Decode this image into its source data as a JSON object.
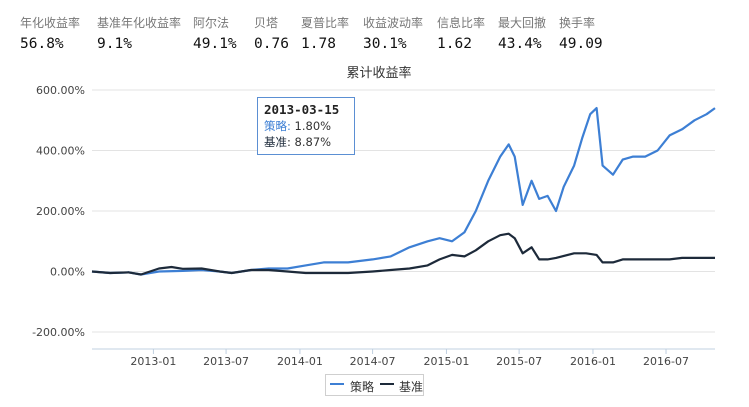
{
  "metrics": [
    {
      "label": "年化收益率",
      "value": "56.8%"
    },
    {
      "label": "基准年化收益率",
      "value": "9.1%"
    },
    {
      "label": "阿尔法",
      "value": "49.1%"
    },
    {
      "label": "贝塔",
      "value": "0.76"
    },
    {
      "label": "夏普比率",
      "value": "1.78"
    },
    {
      "label": "收益波动率",
      "value": "30.1%"
    },
    {
      "label": "信息比率",
      "value": "1.62"
    },
    {
      "label": "最大回撤",
      "value": "43.4%"
    },
    {
      "label": "换手率",
      "value": "49.09"
    }
  ],
  "tooltip": {
    "date": "2013-03-15",
    "strategy_label": "策略",
    "strategy_value": "1.80%",
    "benchmark_label": "基准",
    "benchmark_value": "8.87%"
  },
  "chart_data": {
    "type": "line",
    "title": "累计收益率",
    "x_ticks": [
      "2013-01",
      "2013-07",
      "2014-01",
      "2014-07",
      "2015-01",
      "2015-07",
      "2016-01",
      "2016-07"
    ],
    "y_ticks": [
      "600.00%",
      "400.00%",
      "200.00%",
      "0.00%",
      "-200.00%"
    ],
    "ylim": [
      -200,
      600
    ],
    "grid": true,
    "legend_placement": "bottom-center",
    "x_range": [
      "2012-08-01",
      "2016-10-31"
    ],
    "series": [
      {
        "name": "策略",
        "color": "#3d7fd4",
        "points": [
          [
            "2012-08-01",
            0
          ],
          [
            "2012-09-15",
            -5
          ],
          [
            "2012-11-01",
            -3
          ],
          [
            "2012-12-01",
            -10
          ],
          [
            "2013-01-15",
            0
          ],
          [
            "2013-03-15",
            2
          ],
          [
            "2013-05-01",
            5
          ],
          [
            "2013-06-15",
            0
          ],
          [
            "2013-07-15",
            -5
          ],
          [
            "2013-09-01",
            5
          ],
          [
            "2013-10-15",
            10
          ],
          [
            "2013-12-01",
            10
          ],
          [
            "2014-01-15",
            20
          ],
          [
            "2014-03-01",
            30
          ],
          [
            "2014-05-01",
            30
          ],
          [
            "2014-07-01",
            40
          ],
          [
            "2014-08-15",
            50
          ],
          [
            "2014-10-01",
            80
          ],
          [
            "2014-11-15",
            100
          ],
          [
            "2014-12-15",
            110
          ],
          [
            "2015-01-15",
            100
          ],
          [
            "2015-02-15",
            130
          ],
          [
            "2015-03-15",
            200
          ],
          [
            "2015-04-15",
            300
          ],
          [
            "2015-05-15",
            380
          ],
          [
            "2015-06-05",
            420
          ],
          [
            "2015-06-20",
            380
          ],
          [
            "2015-07-10",
            220
          ],
          [
            "2015-08-01",
            300
          ],
          [
            "2015-08-20",
            240
          ],
          [
            "2015-09-10",
            250
          ],
          [
            "2015-10-01",
            200
          ],
          [
            "2015-10-20",
            280
          ],
          [
            "2015-11-15",
            350
          ],
          [
            "2015-12-05",
            440
          ],
          [
            "2015-12-25",
            520
          ],
          [
            "2016-01-10",
            540
          ],
          [
            "2016-01-25",
            350
          ],
          [
            "2016-02-20",
            320
          ],
          [
            "2016-03-15",
            370
          ],
          [
            "2016-04-10",
            380
          ],
          [
            "2016-05-10",
            380
          ],
          [
            "2016-06-10",
            400
          ],
          [
            "2016-07-10",
            450
          ],
          [
            "2016-08-10",
            470
          ],
          [
            "2016-09-10",
            500
          ],
          [
            "2016-10-10",
            520
          ],
          [
            "2016-10-31",
            540
          ]
        ]
      },
      {
        "name": "基准",
        "color": "#1d2a3a",
        "points": [
          [
            "2012-08-01",
            0
          ],
          [
            "2012-09-15",
            -5
          ],
          [
            "2012-11-01",
            -3
          ],
          [
            "2012-12-01",
            -10
          ],
          [
            "2013-01-15",
            10
          ],
          [
            "2013-02-15",
            15
          ],
          [
            "2013-03-15",
            9
          ],
          [
            "2013-05-01",
            10
          ],
          [
            "2013-06-15",
            0
          ],
          [
            "2013-07-15",
            -5
          ],
          [
            "2013-09-01",
            5
          ],
          [
            "2013-10-15",
            5
          ],
          [
            "2013-12-01",
            0
          ],
          [
            "2014-01-15",
            -5
          ],
          [
            "2014-03-01",
            -5
          ],
          [
            "2014-05-01",
            -5
          ],
          [
            "2014-07-01",
            0
          ],
          [
            "2014-08-15",
            5
          ],
          [
            "2014-10-01",
            10
          ],
          [
            "2014-11-15",
            20
          ],
          [
            "2014-12-15",
            40
          ],
          [
            "2015-01-15",
            55
          ],
          [
            "2015-02-15",
            50
          ],
          [
            "2015-03-15",
            70
          ],
          [
            "2015-04-15",
            100
          ],
          [
            "2015-05-15",
            120
          ],
          [
            "2015-06-05",
            125
          ],
          [
            "2015-06-20",
            110
          ],
          [
            "2015-07-10",
            60
          ],
          [
            "2015-08-01",
            80
          ],
          [
            "2015-08-20",
            40
          ],
          [
            "2015-09-10",
            40
          ],
          [
            "2015-10-01",
            45
          ],
          [
            "2015-11-15",
            60
          ],
          [
            "2015-12-15",
            60
          ],
          [
            "2016-01-10",
            55
          ],
          [
            "2016-01-25",
            30
          ],
          [
            "2016-02-20",
            30
          ],
          [
            "2016-03-15",
            40
          ],
          [
            "2016-05-10",
            40
          ],
          [
            "2016-07-10",
            40
          ],
          [
            "2016-08-10",
            45
          ],
          [
            "2016-10-31",
            45
          ]
        ]
      }
    ]
  }
}
